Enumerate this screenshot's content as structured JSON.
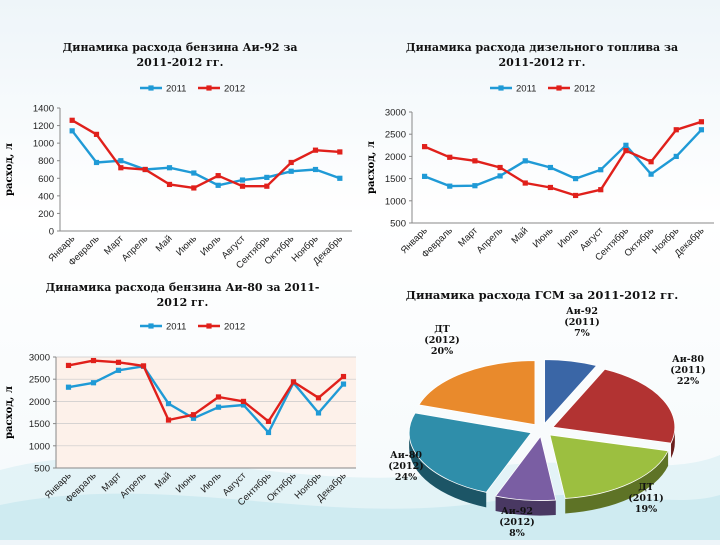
{
  "months": [
    "Январь",
    "Февраль",
    "Март",
    "Апрель",
    "Май",
    "Июнь",
    "Июль",
    "Август",
    "Сентябрь",
    "Октябрь",
    "Ноябрь",
    "Декабрь"
  ],
  "colors": {
    "s2011": "#1f9ad6",
    "s2012": "#e0201b",
    "pie_ai92_2011": "#3a66a6",
    "pie_ai80_2011": "#b23332",
    "pie_dt_2011": "#9cbf40",
    "pie_ai92_2012": "#7a5ea3",
    "pie_ai80_2012": "#2f8eaa",
    "pie_dt_2012": "#e98a2c"
  },
  "chart_data": [
    {
      "id": "ai92",
      "type": "line",
      "title": "Динамика расхода бензина Аи-92 за 2011-2012 гг.",
      "ylabel": "расход, л",
      "ylim": [
        0,
        1400
      ],
      "yticks": [
        0,
        200,
        400,
        600,
        800,
        1000,
        1200,
        1400
      ],
      "grid": false,
      "legend": "top",
      "series": [
        {
          "name": "2011",
          "values": [
            1140,
            780,
            800,
            700,
            720,
            660,
            520,
            580,
            610,
            680,
            700,
            600
          ]
        },
        {
          "name": "2012",
          "values": [
            1260,
            1100,
            720,
            700,
            530,
            490,
            630,
            510,
            510,
            780,
            920,
            900
          ]
        }
      ]
    },
    {
      "id": "dt",
      "type": "line",
      "title": "Динамика расхода дизельного топлива за 2011-2012 гг.",
      "ylabel": "расход, л",
      "ylim": [
        500,
        3000
      ],
      "yticks": [
        500,
        1000,
        1500,
        2000,
        2500,
        3000
      ],
      "grid": false,
      "legend": "top-right",
      "series": [
        {
          "name": "2011",
          "values": [
            1550,
            1330,
            1340,
            1560,
            1900,
            1750,
            1500,
            1700,
            2250,
            1600,
            2000,
            2600
          ]
        },
        {
          "name": "2012",
          "values": [
            2220,
            1980,
            1900,
            1750,
            1400,
            1300,
            1120,
            1250,
            2130,
            1880,
            2600,
            2780
          ]
        }
      ]
    },
    {
      "id": "ai80",
      "type": "line",
      "title": "Динамика расхода бензина Аи-80 за 2011-2012 гг.",
      "ylabel": "расход, л",
      "ylim": [
        500,
        3000
      ],
      "yticks": [
        500,
        1000,
        1500,
        2000,
        2500,
        3000
      ],
      "grid": true,
      "legend": "top",
      "series": [
        {
          "name": "2011",
          "values": [
            2320,
            2420,
            2700,
            2790,
            1950,
            1620,
            1870,
            1920,
            1300,
            2420,
            1740,
            2390
          ]
        },
        {
          "name": "2012",
          "values": [
            2810,
            2920,
            2880,
            2800,
            1580,
            1700,
            2100,
            2000,
            1550,
            2440,
            2080,
            2560
          ]
        }
      ]
    },
    {
      "id": "gsm",
      "type": "pie",
      "title": "Динамика расхода ГСМ за 2011-2012 гг.",
      "slices": [
        {
          "label": "Аи-92 (2011)",
          "pct": "7%",
          "value": 7,
          "color_key": "pie_ai92_2011"
        },
        {
          "label": "Аи-80 (2011)",
          "pct": "22%",
          "value": 22,
          "color_key": "pie_ai80_2011"
        },
        {
          "label": "ДТ (2011)",
          "pct": "19%",
          "value": 19,
          "color_key": "pie_dt_2011"
        },
        {
          "label": "Аи-92 (2012)",
          "pct": "8%",
          "value": 8,
          "color_key": "pie_ai92_2012"
        },
        {
          "label": "Аи-80 (2012)",
          "pct": "24%",
          "value": 24,
          "color_key": "pie_ai80_2012"
        },
        {
          "label": "ДТ (2012)",
          "pct": "20%",
          "value": 20,
          "color_key": "pie_dt_2012"
        }
      ]
    }
  ]
}
